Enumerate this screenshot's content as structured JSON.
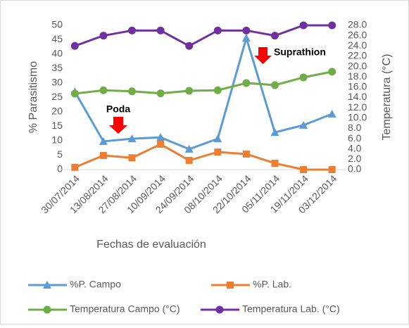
{
  "chart_data": {
    "type": "line",
    "x_label": "Fechas de evaluación",
    "y_label": "% Parasitismo",
    "y2_label": "Temperatura (°C)",
    "categories": [
      "30/07/2014",
      "13/08/2014",
      "27/08/2014",
      "10/09/2014",
      "24/09/2014",
      "08/10/2014",
      "22/10/2014",
      "05/11/2014",
      "19/11/2014",
      "03/12/2014"
    ],
    "series": [
      {
        "name": "%P. Campo",
        "color": "#5b9bd5",
        "marker": "triangle",
        "values": [
          27,
          9.8,
          10.7,
          11.2,
          7.1,
          10.7,
          45.6,
          12.9,
          15.4,
          19.3
        ]
      },
      {
        "name": "%P. Lab.",
        "color": "#ed7d31",
        "marker": "square",
        "values": [
          0.8,
          4.9,
          4.1,
          8.8,
          3.2,
          6.1,
          5.4,
          2.2,
          0,
          0
        ]
      },
      {
        "name": "Temperatura Campo (°C)",
        "color": "#70ad47",
        "marker": "circle",
        "axis": "y2",
        "values": [
          14.75,
          15.4,
          15.2,
          14.8,
          15.3,
          15.4,
          16.8,
          16.4,
          17.9,
          19.0
        ]
      },
      {
        "name": "Temperatura Lab. (°C)",
        "color": "#7030a0",
        "marker": "circle",
        "axis": "y2",
        "values": [
          24,
          26,
          27,
          27,
          24,
          27,
          27,
          26,
          28,
          28
        ]
      }
    ],
    "ylim": [
      0,
      50
    ],
    "yticks": [
      0,
      5,
      10,
      15,
      20,
      25,
      30,
      35,
      40,
      45,
      50
    ],
    "y2lim": [
      0,
      28
    ],
    "y2ticks": [
      {
        "value": 0,
        "label": "0.0"
      },
      {
        "value": 2,
        "label": "2.0"
      },
      {
        "value": 4,
        "label": "4.0"
      },
      {
        "value": 6,
        "label": "6.0"
      },
      {
        "value": 8,
        "label": "8.0"
      },
      {
        "value": 10,
        "label": "10.0"
      },
      {
        "value": 12,
        "label": "12.0"
      },
      {
        "value": 14,
        "label": "14.0"
      },
      {
        "value": 16,
        "label": "16.0"
      },
      {
        "value": 18,
        "label": "18.0"
      },
      {
        "value": 20,
        "label": "20.0"
      },
      {
        "value": 22,
        "label": "22.0"
      },
      {
        "value": 24,
        "label": "24.0"
      },
      {
        "value": 26,
        "label": "26.0"
      },
      {
        "value": 28,
        "label": "28.0"
      }
    ],
    "annotations": [
      "Poda",
      "Suprathion"
    ],
    "grid": false,
    "legend": "bottom"
  }
}
